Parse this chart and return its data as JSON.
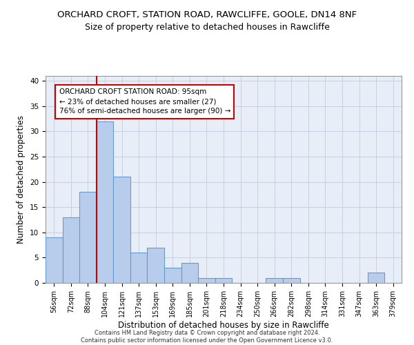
{
  "title_line1": "ORCHARD CROFT, STATION ROAD, RAWCLIFFE, GOOLE, DN14 8NF",
  "title_line2": "Size of property relative to detached houses in Rawcliffe",
  "xlabel": "Distribution of detached houses by size in Rawcliffe",
  "ylabel": "Number of detached properties",
  "footnote": "Contains HM Land Registry data © Crown copyright and database right 2024.\nContains public sector information licensed under the Open Government Licence v3.0.",
  "bar_labels": [
    "56sqm",
    "72sqm",
    "88sqm",
    "104sqm",
    "121sqm",
    "137sqm",
    "153sqm",
    "169sqm",
    "185sqm",
    "201sqm",
    "218sqm",
    "234sqm",
    "250sqm",
    "266sqm",
    "282sqm",
    "298sqm",
    "314sqm",
    "331sqm",
    "347sqm",
    "363sqm",
    "379sqm"
  ],
  "bar_values": [
    9,
    13,
    18,
    32,
    21,
    6,
    7,
    3,
    4,
    1,
    1,
    0,
    0,
    1,
    1,
    0,
    0,
    0,
    0,
    2,
    0
  ],
  "bar_color": "#b8cceb",
  "bar_edgecolor": "#6699cc",
  "annotation_box_text": "ORCHARD CROFT STATION ROAD: 95sqm\n← 23% of detached houses are smaller (27)\n76% of semi-detached houses are larger (90) →",
  "vline_x": 2.5,
  "vline_color": "#cc0000",
  "ylim": [
    0,
    41
  ],
  "yticks": [
    0,
    5,
    10,
    15,
    20,
    25,
    30,
    35,
    40
  ],
  "bg_color": "#e8eef8",
  "grid_color": "#c8d0e0",
  "title_fontsize": 9.5,
  "subtitle_fontsize": 9,
  "axis_label_fontsize": 8.5,
  "tick_fontsize": 7,
  "annotation_fontsize": 7.5
}
